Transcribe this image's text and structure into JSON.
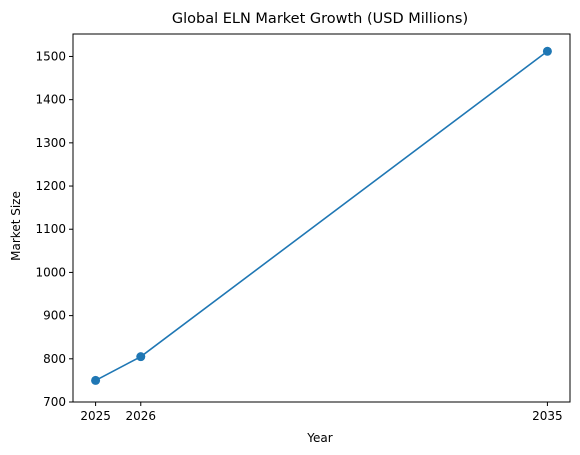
{
  "chart_data": {
    "type": "line",
    "title": "Global ELN Market Growth (USD Millions)",
    "xlabel": "Year",
    "ylabel": "Market Size",
    "x": [
      2025,
      2026,
      2035
    ],
    "series": [
      {
        "values": [
          750,
          805,
          1512
        ],
        "color": "#1f77b4",
        "marker": "circle"
      }
    ],
    "xticks": [
      2025,
      2026,
      2035
    ],
    "xtick_labels": [
      "2025",
      "2026",
      "2035"
    ],
    "yticks": [
      700,
      800,
      900,
      1000,
      1100,
      1200,
      1300,
      1400,
      1500
    ],
    "ytick_labels": [
      "700",
      "800",
      "900",
      "1000",
      "1100",
      "1200",
      "1300",
      "1400",
      "1500"
    ],
    "xlim": [
      2024.5,
      2035.5
    ],
    "ylim": [
      700,
      1552
    ],
    "grid": false,
    "legend": false
  }
}
